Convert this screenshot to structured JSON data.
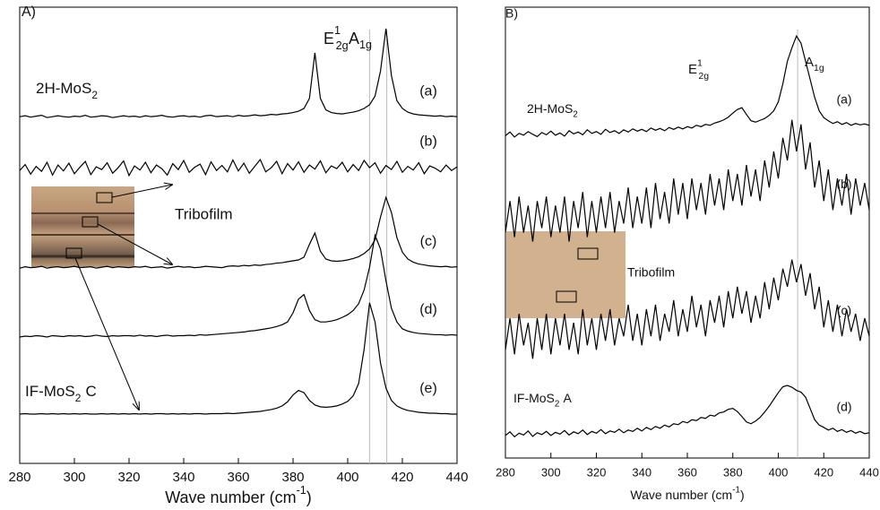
{
  "chart_data": [
    {
      "type": "line",
      "panel_label": "A)",
      "xlabel": {
        "text": "Wave number (cm",
        "sup": "-1",
        "after": ")"
      },
      "xlim": [
        280,
        440
      ],
      "xticks": [
        280,
        300,
        320,
        340,
        360,
        380,
        400,
        420,
        440
      ],
      "ylim": [
        0,
        100
      ],
      "color": "#000000",
      "reference_color": "#bbbbbb",
      "reference_lines": [
        414.3,
        408
      ],
      "peak_labels": [
        {
          "text": "E",
          "sup": "1",
          "sub": "2g"
        },
        {
          "text": "A",
          "sub": "1g"
        }
      ],
      "sample_labels": [
        {
          "text": "2H-MoS",
          "sub": "2"
        },
        {
          "text": "IF-MoS",
          "sub": "2",
          "after": "C"
        }
      ],
      "inset_label": "Tribofilm",
      "x": [
        280,
        282,
        284,
        286,
        288,
        290,
        292,
        294,
        296,
        298,
        300,
        302,
        304,
        306,
        308,
        310,
        312,
        314,
        316,
        318,
        320,
        322,
        324,
        326,
        328,
        330,
        332,
        334,
        336,
        338,
        340,
        342,
        344,
        346,
        348,
        350,
        352,
        354,
        356,
        358,
        360,
        362,
        364,
        366,
        368,
        370,
        372,
        374,
        376,
        378,
        380,
        382,
        384,
        386,
        388,
        390,
        392,
        394,
        396,
        398,
        400,
        402,
        404,
        406,
        408,
        410,
        412,
        414,
        416,
        418,
        420,
        422,
        424,
        426,
        428,
        430,
        432,
        434,
        436,
        438,
        440
      ],
      "series": [
        {
          "name": "(a)",
          "values": [
            76,
            76.2,
            75.9,
            76.1,
            76.3,
            75.8,
            76,
            76.2,
            76,
            75.9,
            76.1,
            76,
            76.3,
            75.9,
            76,
            76.2,
            76.1,
            75.8,
            76,
            76.2,
            76,
            76.1,
            75.9,
            76.2,
            76,
            76.1,
            76.3,
            76,
            75.9,
            76.1,
            76.2,
            76,
            76.1,
            75.9,
            76.2,
            76.3,
            76,
            76.1,
            76.2,
            76,
            76.3,
            76.1,
            76.2,
            76.4,
            76.2,
            76.3,
            76.5,
            76.4,
            76.6,
            76.7,
            76.9,
            77.2,
            77.8,
            80,
            90,
            80,
            77.5,
            76.9,
            76.7,
            76.6,
            76.8,
            77,
            77.3,
            77.8,
            78.6,
            80.5,
            86,
            95.3,
            85,
            79.5,
            77.8,
            77,
            76.6,
            76.4,
            76.3,
            76.2,
            76.1,
            76.2,
            76,
            76.1,
            76
          ]
        },
        {
          "name": "(b)",
          "values": [
            64.2,
            65.5,
            63.4,
            65.1,
            64,
            66,
            63.2,
            65.4,
            64.1,
            65.8,
            63.5,
            64.9,
            66.2,
            63.3,
            65,
            64.4,
            65.9,
            63.6,
            64.8,
            66.3,
            63.1,
            65.2,
            64.3,
            66,
            63.7,
            65.4,
            64.6,
            63.2,
            65.7,
            64.4,
            66.4,
            63.8,
            64.9,
            65.6,
            63.3,
            66.1,
            64.2,
            65.3,
            63.9,
            66.5,
            64.1,
            65.8,
            63.6,
            65.1,
            66.6,
            63.9,
            64.8,
            66.2,
            63.5,
            65.7,
            64.3,
            66.1,
            63.8,
            65.4,
            64.5,
            66.3,
            63.7,
            65.2,
            64.6,
            66,
            63.9,
            65.5,
            64.2,
            66.4,
            64.8,
            65.9,
            63.6,
            65.3,
            64.4,
            66.2,
            63.8,
            65.1,
            64.3,
            65.9,
            63.5,
            65.2,
            64.7,
            63.9,
            65.4,
            64.2,
            65
          ]
        },
        {
          "name": "(c)",
          "values": [
            42.8,
            43.1,
            42.9,
            43,
            43.2,
            42.8,
            43,
            43.1,
            42.9,
            43,
            43.2,
            42.9,
            43,
            43.1,
            42.8,
            43,
            43.2,
            42.9,
            43.1,
            43,
            42.9,
            43.1,
            43,
            43.2,
            42.9,
            43,
            43.1,
            42.8,
            43,
            43.2,
            43,
            43.1,
            42.9,
            43,
            43.2,
            43.1,
            43,
            42.9,
            43.2,
            43.3,
            43.2,
            43.4,
            43.3,
            43.5,
            43.4,
            43.6,
            43.7,
            43.9,
            44,
            44.2,
            44.4,
            44.6,
            45.2,
            48,
            50.5,
            46.5,
            44.8,
            44.4,
            44.3,
            44.4,
            44.6,
            44.9,
            45.3,
            46,
            47,
            49,
            54,
            58.3,
            55,
            49.5,
            46.3,
            44.8,
            44.1,
            43.7,
            43.5,
            43.3,
            43.2,
            43.1,
            43.2,
            43,
            43.1
          ]
        },
        {
          "name": "(d)",
          "values": [
            27.7,
            27.9,
            27.8,
            28,
            27.9,
            27.7,
            28,
            27.9,
            27.8,
            28,
            27.9,
            28,
            27.8,
            27.9,
            28.1,
            27.9,
            27.8,
            28,
            27.9,
            28,
            28,
            27.9,
            28.1,
            27.9,
            28,
            27.8,
            28,
            28.1,
            27.9,
            28,
            28,
            28.1,
            28,
            28.2,
            28.1,
            28.2,
            28.3,
            28.4,
            28.5,
            28.6,
            28.7,
            28.8,
            29,
            29.1,
            29.3,
            29.5,
            29.7,
            30,
            30.4,
            31,
            33,
            36,
            37,
            33.5,
            31.5,
            31,
            31,
            31.2,
            31.5,
            32,
            32.6,
            33.5,
            35,
            38,
            43,
            50,
            47,
            40,
            34,
            31,
            29.5,
            29,
            28.7,
            28.5,
            28.4,
            28.3,
            28.2,
            28.2,
            28.1,
            28.2,
            28.1
          ]
        },
        {
          "name": "(e)",
          "values": [
            10.8,
            10.9,
            10.8,
            10.8,
            10.9,
            10.8,
            10.9,
            10.8,
            10.9,
            10.8,
            10.9,
            10.8,
            10.9,
            10.8,
            10.8,
            10.9,
            10.8,
            10.9,
            10.8,
            10.9,
            10.8,
            10.9,
            10.8,
            10.9,
            10.8,
            10.9,
            10.9,
            10.8,
            10.9,
            10.8,
            10.9,
            10.8,
            10.9,
            10.9,
            10.8,
            10.9,
            10.9,
            10.9,
            11,
            10.9,
            11,
            11.1,
            11.2,
            11.3,
            11.4,
            11.6,
            11.8,
            12.1,
            12.6,
            13.5,
            15,
            16,
            15.5,
            13.8,
            12.8,
            12.4,
            12.3,
            12.4,
            12.6,
            13,
            13.6,
            14.8,
            17.5,
            25,
            35.2,
            31,
            22,
            16.5,
            13.8,
            12.6,
            12,
            11.6,
            11.4,
            11.2,
            11.1,
            11,
            11,
            10.9,
            10.9,
            10.8,
            10.8
          ]
        }
      ]
    },
    {
      "type": "line",
      "panel_label": "B)",
      "xlabel": {
        "text": "Wave number (cm",
        "sup": "-1",
        "after": ")"
      },
      "xlim": [
        280,
        440
      ],
      "xticks": [
        280,
        300,
        320,
        340,
        360,
        380,
        400,
        420,
        440
      ],
      "ylim": [
        0,
        100
      ],
      "color": "#000000",
      "reference_color": "#bbbbbb",
      "reference_lines": [
        408.5
      ],
      "peak_labels": [
        {
          "text": "E",
          "sup": "1",
          "sub": "2g"
        },
        {
          "text": "A",
          "sub": "1g"
        }
      ],
      "sample_labels": [
        {
          "text": "2H-MoS",
          "sub": "2"
        },
        {
          "text": "IF-MoS",
          "sub": "2",
          "after": "A"
        }
      ],
      "inset_label": "Tribofilm",
      "x": [
        280,
        282,
        284,
        286,
        288,
        290,
        292,
        294,
        296,
        298,
        300,
        302,
        304,
        306,
        308,
        310,
        312,
        314,
        316,
        318,
        320,
        322,
        324,
        326,
        328,
        330,
        332,
        334,
        336,
        338,
        340,
        342,
        344,
        346,
        348,
        350,
        352,
        354,
        356,
        358,
        360,
        362,
        364,
        366,
        368,
        370,
        372,
        374,
        376,
        378,
        380,
        382,
        384,
        386,
        388,
        390,
        392,
        394,
        396,
        398,
        400,
        402,
        404,
        406,
        408,
        410,
        412,
        414,
        416,
        418,
        420,
        422,
        424,
        426,
        428,
        430,
        432,
        434,
        436,
        438,
        440
      ],
      "series": [
        {
          "name": "(a)",
          "values": [
            71.5,
            72.3,
            71.2,
            72,
            71.6,
            72.4,
            71.8,
            71.3,
            72.2,
            71.7,
            72.5,
            71.6,
            72.1,
            71.4,
            72.6,
            71.9,
            72.3,
            71.7,
            72.8,
            72,
            72.4,
            71.8,
            72.9,
            72.2,
            72.6,
            72,
            72.8,
            72.3,
            73,
            72.5,
            72.9,
            72.4,
            73.2,
            72.7,
            73.1,
            72.6,
            73.3,
            72.9,
            73.4,
            73,
            73.5,
            73.2,
            73.8,
            73.5,
            74,
            73.8,
            74.3,
            74.6,
            75,
            75.6,
            76.5,
            77.3,
            77.7,
            76.2,
            74.8,
            74.5,
            74.9,
            75.3,
            76,
            77,
            79,
            83,
            88,
            91,
            93.6,
            92,
            88,
            84,
            80,
            77,
            75.5,
            74.8,
            74.2,
            74.6,
            74,
            74.4,
            73.8,
            74.2,
            73.9,
            74.1,
            73.8
          ]
        },
        {
          "name": "(b)",
          "values": [
            50,
            57,
            49,
            58,
            50,
            56,
            48,
            57,
            51,
            58,
            49,
            56,
            50,
            58,
            48,
            57,
            51,
            59,
            49,
            57,
            50,
            58,
            51,
            59,
            50,
            57,
            52,
            60,
            51,
            58,
            52,
            60,
            51,
            61,
            53,
            59,
            52,
            62,
            54,
            61,
            53,
            62,
            55,
            61,
            54,
            63,
            56,
            62,
            55,
            64,
            57,
            63,
            56,
            65,
            58,
            64,
            57,
            66,
            60,
            68,
            62,
            71,
            66,
            75,
            68,
            74,
            64,
            70,
            60,
            66,
            57,
            64,
            55,
            62,
            56,
            63,
            54,
            62,
            56,
            61,
            55
          ]
        },
        {
          "name": "(c)",
          "values": [
            24,
            31,
            23,
            32,
            25,
            30,
            22,
            31,
            24,
            32,
            23,
            31,
            25,
            32,
            24,
            30,
            23,
            33,
            25,
            31,
            24,
            32,
            26,
            33,
            25,
            31,
            27,
            34,
            26,
            32,
            25,
            33,
            27,
            34,
            26,
            32,
            28,
            35,
            27,
            33,
            28,
            36,
            29,
            34,
            27,
            35,
            30,
            36,
            29,
            37,
            31,
            38,
            32,
            37,
            30,
            36,
            31,
            39,
            33,
            40,
            35,
            42,
            38,
            44,
            39,
            43,
            36,
            41,
            33,
            38,
            29,
            35,
            28,
            34,
            27,
            33,
            28,
            32,
            26,
            31,
            27
          ]
        },
        {
          "name": "(d)",
          "values": [
            5,
            5.8,
            4.7,
            5.5,
            5.1,
            6,
            4.8,
            5.6,
            5.2,
            5.9,
            5,
            5.7,
            5.3,
            6.1,
            5.1,
            5.8,
            5.4,
            6.2,
            5.2,
            5.9,
            5.5,
            6.3,
            5.4,
            6,
            5.7,
            6.4,
            5.6,
            6.2,
            5.9,
            6.6,
            6,
            6.8,
            6.3,
            7,
            6.6,
            7.3,
            6.9,
            7.6,
            7.4,
            8.1,
            7.8,
            8.5,
            8.3,
            9,
            8.8,
            9.5,
            9.3,
            10,
            10.2,
            10.8,
            11,
            10.3,
            9.2,
            8,
            7.6,
            8.2,
            9,
            10.2,
            11.5,
            13,
            14.5,
            15.8,
            16.1,
            15.7,
            15,
            14.6,
            13.5,
            11,
            8.5,
            7.3,
            6.8,
            6.2,
            6.6,
            5.9,
            6.3,
            5.7,
            6.1,
            5.5,
            5.9,
            5.4,
            5.6
          ]
        }
      ]
    }
  ]
}
